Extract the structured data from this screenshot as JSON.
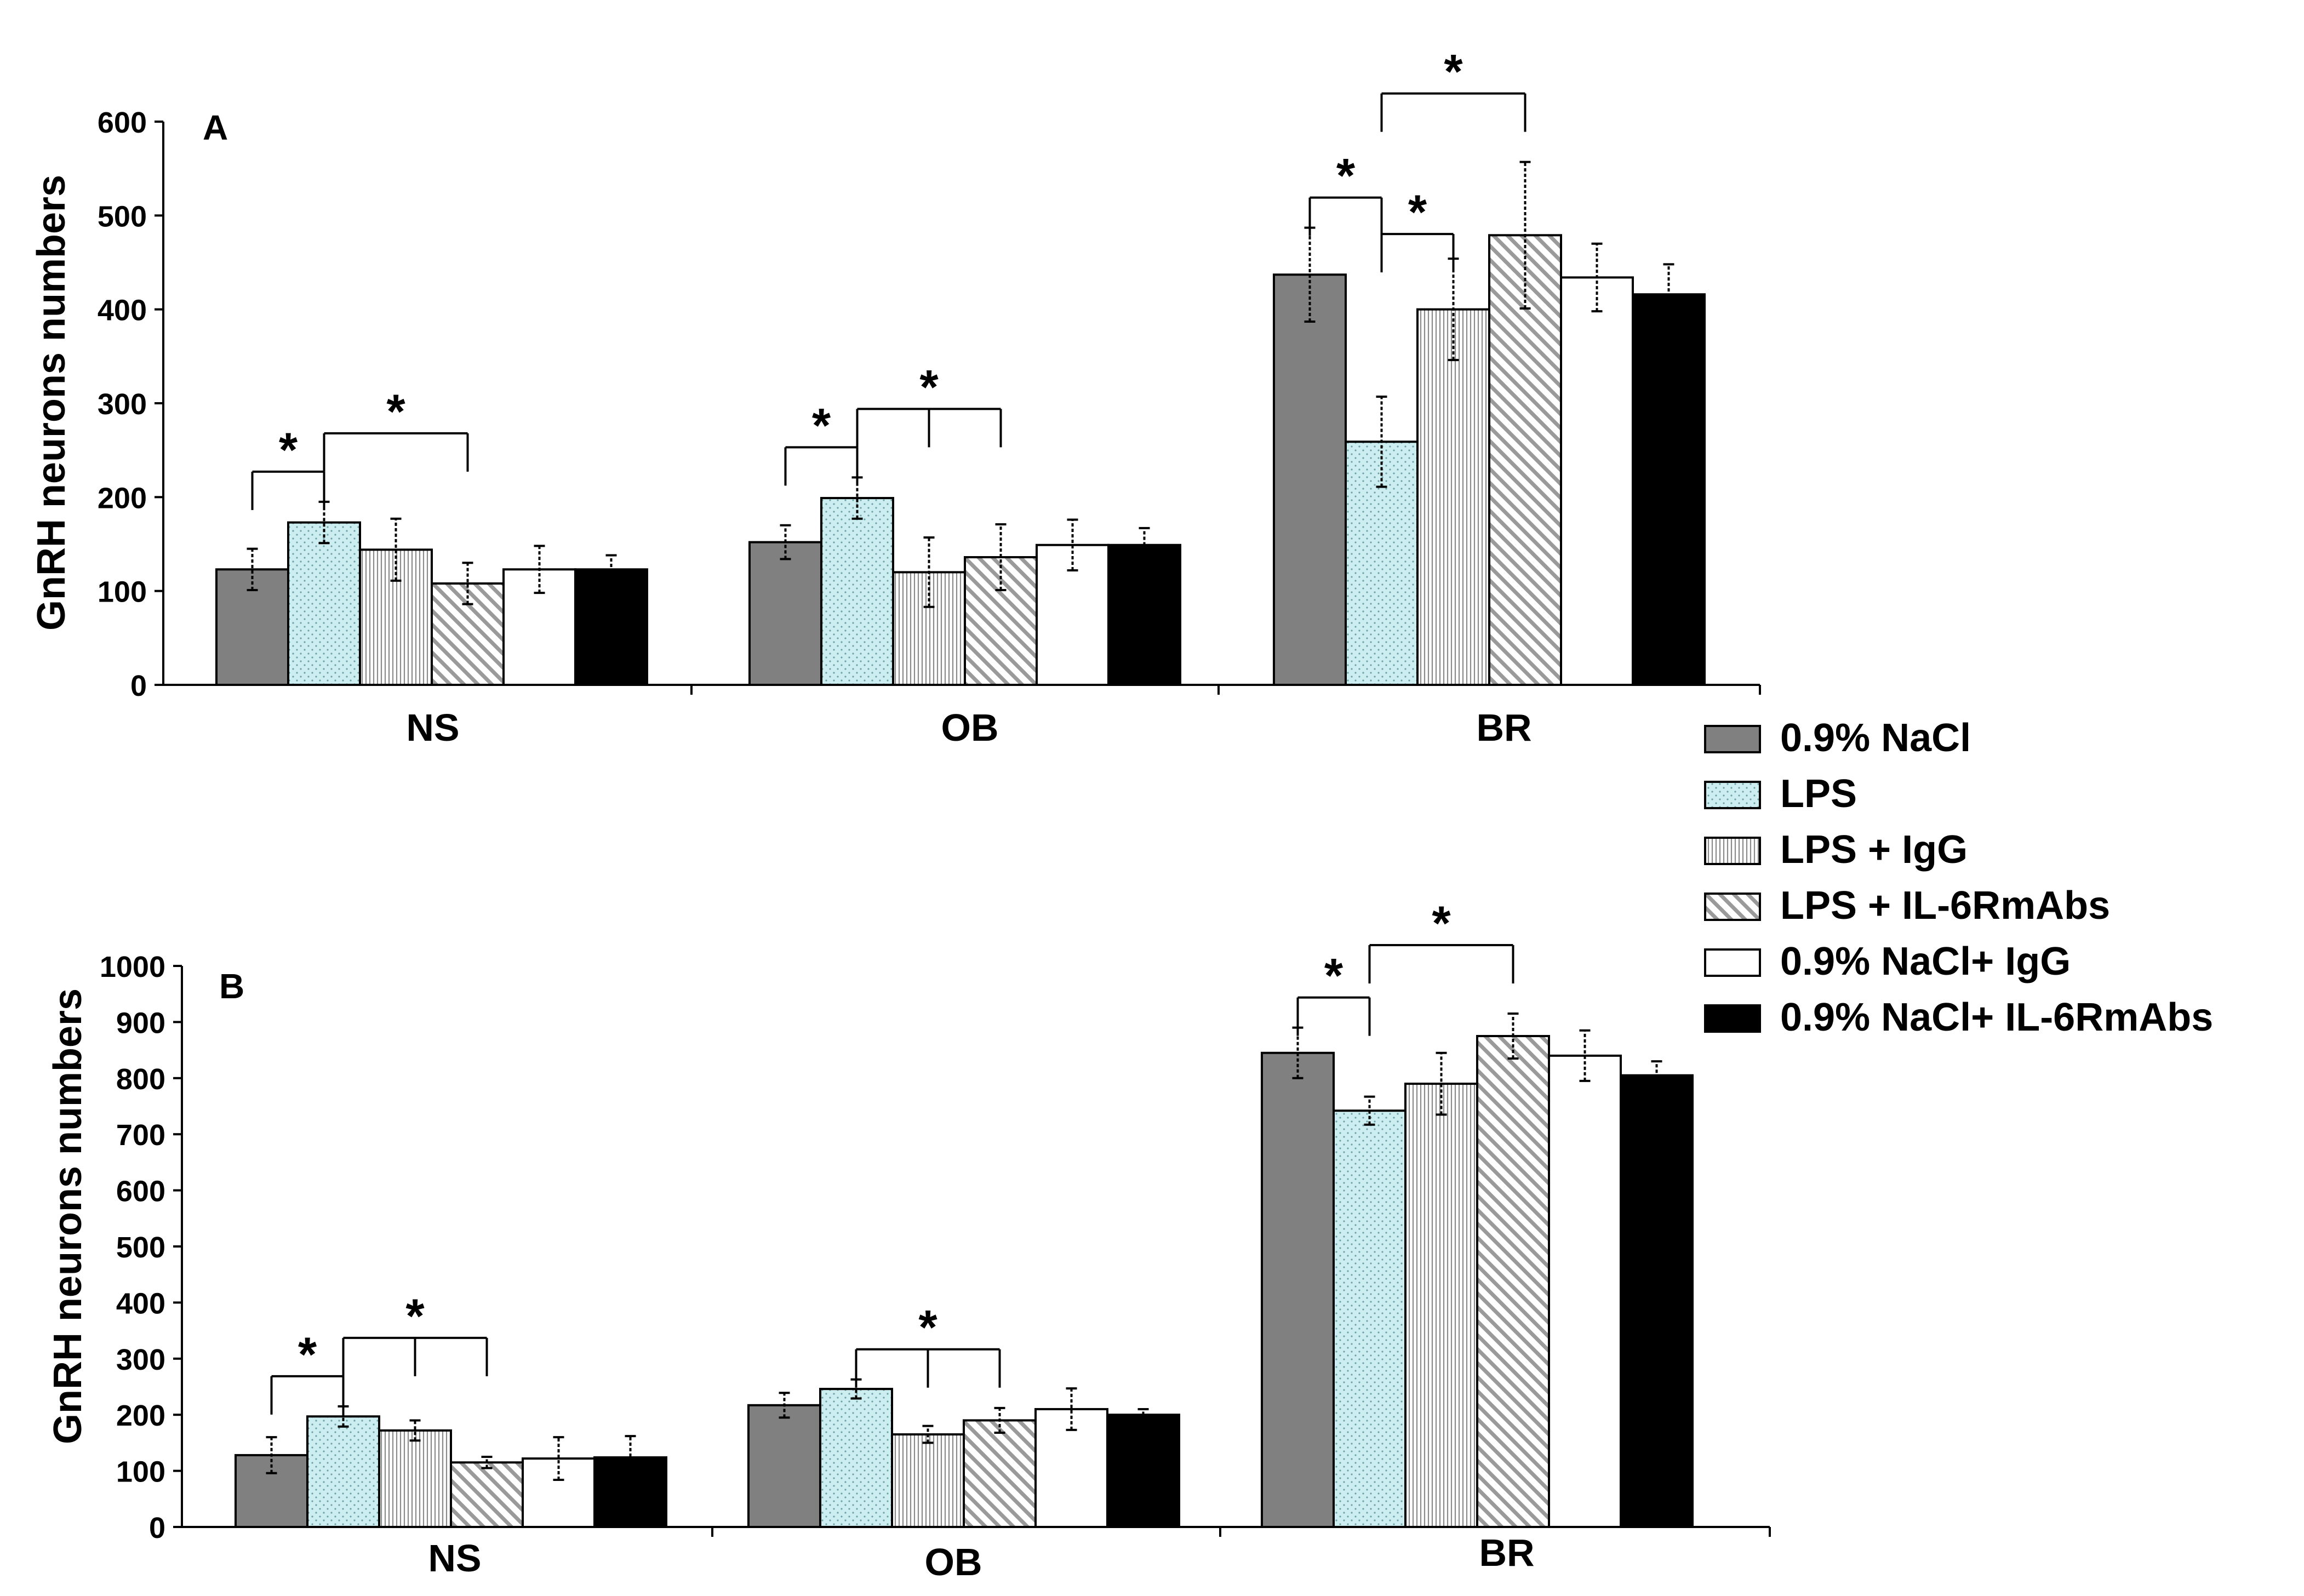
{
  "chart_data": [
    {
      "type": "bar",
      "panel_label": "A",
      "ylabel": "GnRH neurons numbers",
      "xlabel": "",
      "ylim": [
        0,
        600
      ],
      "yticks": [
        0,
        100,
        200,
        300,
        400,
        500,
        600
      ],
      "categories": [
        "NS",
        "OB",
        "BR"
      ],
      "series": [
        {
          "name": "0.9% NaCl",
          "values": [
            123,
            152,
            437
          ],
          "errors": [
            22,
            18,
            50
          ]
        },
        {
          "name": "LPS",
          "values": [
            173,
            199,
            259
          ],
          "errors": [
            22,
            22,
            48
          ]
        },
        {
          "name": "LPS + IgG",
          "values": [
            144,
            120,
            400
          ],
          "errors": [
            33,
            37,
            54
          ]
        },
        {
          "name": "LPS + IL-6RmAbs",
          "values": [
            108,
            136,
            479
          ],
          "errors": [
            22,
            35,
            78
          ]
        },
        {
          "name": "0.9% NaCl+ IgG",
          "values": [
            123,
            149,
            434
          ],
          "errors": [
            25,
            27,
            36
          ]
        },
        {
          "name": "0.9% NaCl+ IL-6RmAbs",
          "values": [
            123,
            149,
            416
          ],
          "errors": [
            15,
            18,
            32
          ]
        }
      ],
      "annotations": [
        {
          "text": "*",
          "group": "NS",
          "from_series": 0,
          "to_series": [
            1
          ],
          "tier": 1
        },
        {
          "text": "*",
          "group": "NS",
          "from_series": 1,
          "to_series": [
            3
          ],
          "tier": 2
        },
        {
          "text": "*",
          "group": "OB",
          "from_series": 0,
          "to_series": [
            1
          ],
          "tier": 1
        },
        {
          "text": "*",
          "group": "OB",
          "from_series": 1,
          "to_series": [
            2,
            3
          ],
          "tier": 2
        },
        {
          "text": "*",
          "group": "BR",
          "from_series": 0,
          "to_series": [
            1
          ],
          "tier": 1
        },
        {
          "text": "*",
          "group": "BR",
          "from_series": 1,
          "to_series": [
            2
          ],
          "tier": 0
        },
        {
          "text": "*",
          "group": "BR",
          "from_series": 1,
          "to_series": [
            3
          ],
          "tier": 2
        }
      ]
    },
    {
      "type": "bar",
      "panel_label": "B",
      "ylabel": "GnRH neurons numbers",
      "xlabel": "",
      "ylim": [
        0,
        1000
      ],
      "yticks": [
        0,
        100,
        200,
        300,
        400,
        500,
        600,
        700,
        800,
        900,
        1000
      ],
      "categories": [
        "NS",
        "OB",
        "BR"
      ],
      "series": [
        {
          "name": "0.9% NaCl",
          "values": [
            128,
            217,
            845
          ],
          "errors": [
            32,
            22,
            45
          ]
        },
        {
          "name": "LPS",
          "values": [
            197,
            246,
            742
          ],
          "errors": [
            18,
            17,
            25
          ]
        },
        {
          "name": "LPS + IgG",
          "values": [
            172,
            165,
            790
          ],
          "errors": [
            18,
            15,
            55
          ]
        },
        {
          "name": "LPS + IL-6RmAbs",
          "values": [
            115,
            190,
            875
          ],
          "errors": [
            10,
            22,
            40
          ]
        },
        {
          "name": "0.9% NaCl+ IgG",
          "values": [
            122,
            210,
            840
          ],
          "errors": [
            38,
            37,
            45
          ]
        },
        {
          "name": "0.9% NaCl+ IL-6RmAbs",
          "values": [
            124,
            200,
            805
          ],
          "errors": [
            38,
            10,
            25
          ]
        }
      ],
      "annotations": [
        {
          "text": "*",
          "group": "NS",
          "from_series": 0,
          "to_series": [
            1
          ],
          "tier": 1
        },
        {
          "text": "*",
          "group": "NS",
          "from_series": 1,
          "to_series": [
            2,
            3
          ],
          "tier": 2
        },
        {
          "text": "*",
          "group": "OB",
          "from_series": 1,
          "to_series": [
            2,
            3
          ],
          "tier": 1
        },
        {
          "text": "*",
          "group": "BR",
          "from_series": 0,
          "to_series": [
            1
          ],
          "tier": 1
        },
        {
          "text": "*",
          "group": "BR",
          "from_series": 1,
          "to_series": [
            3
          ],
          "tier": 2
        }
      ]
    }
  ],
  "legend": {
    "position": "right",
    "entries": [
      {
        "label": "0.9% NaCl",
        "fill": "#808080",
        "pattern": "solid"
      },
      {
        "label": "LPS",
        "fill": "#cdeef0",
        "pattern": "dots"
      },
      {
        "label": "LPS + IgG",
        "fill": "#ffffff",
        "pattern": "vertical-lines"
      },
      {
        "label": "LPS + IL-6RmAbs",
        "fill": "#ffffff",
        "pattern": "diagonal-lines"
      },
      {
        "label": "0.9% NaCl+ IgG",
        "fill": "#ffffff",
        "pattern": "none"
      },
      {
        "label": "0.9% NaCl+ IL-6RmAbs",
        "fill": "#000000",
        "pattern": "solid"
      }
    ]
  }
}
